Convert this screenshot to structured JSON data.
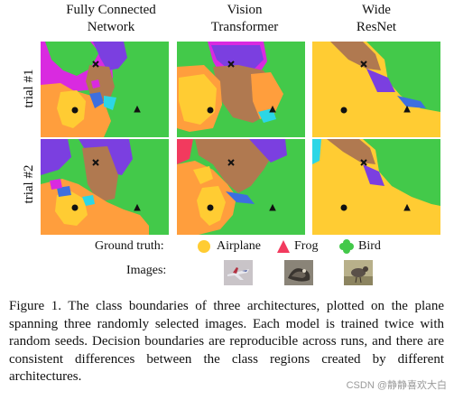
{
  "columns": [
    "Fully Connected\nNetwork",
    "Vision\nTransformer",
    "Wide\nResNet"
  ],
  "rows": [
    "trial #1",
    "trial #2"
  ],
  "colors": {
    "airplane": "#ffcc33",
    "frog": "#f23a5e",
    "bird": "#43c94a",
    "orange": "#ff9e3d",
    "brown": "#b07950",
    "purple": "#7b3fe0",
    "magenta": "#d92ae0",
    "blue": "#3d6fe0",
    "cyan": "#2cd6e6"
  },
  "legend": {
    "label": "Ground truth:",
    "items": [
      {
        "shape": "circle",
        "label": "Airplane"
      },
      {
        "shape": "triangle",
        "label": "Frog"
      },
      {
        "shape": "clover",
        "label": "Bird"
      }
    ]
  },
  "images_label": "Images:",
  "caption": "Figure 1.  The class boundaries of three architectures, plotted on the plane spanning three randomly selected images. Each model is trained twice with random seeds. Decision boundaries are reproducible across runs, and there are consistent differences between the class regions created by different architectures.",
  "watermark": "CSDN @静静喜欢大白"
}
